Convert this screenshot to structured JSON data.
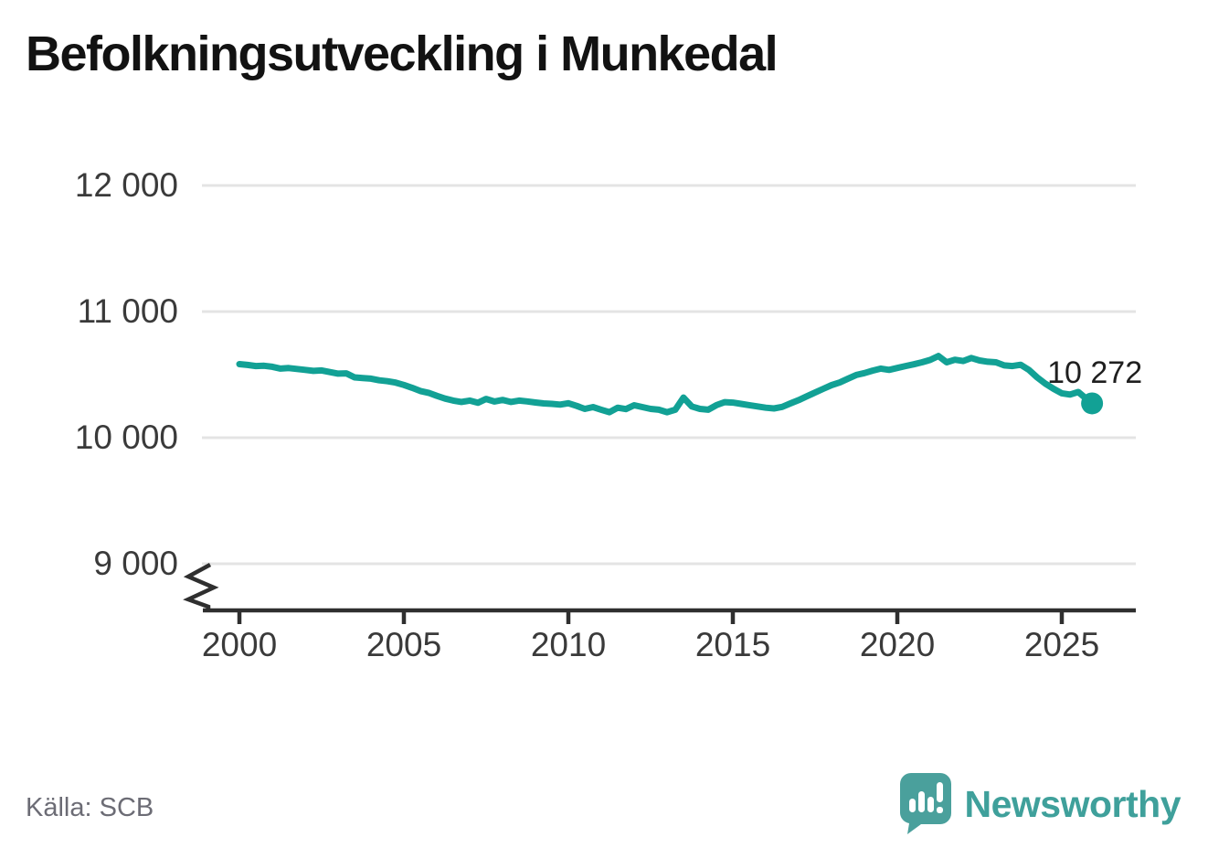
{
  "header": {
    "title": "Befolkningsutveckling i Munkedal"
  },
  "chart_data": {
    "type": "line",
    "title": "Befolkningsutveckling i Munkedal",
    "xlabel": "",
    "ylabel": "",
    "grid": "horizontal-only",
    "axis_break": true,
    "x_ticks": [
      2000,
      2005,
      2010,
      2015,
      2020,
      2025
    ],
    "x_tick_labels": [
      "2000",
      "2005",
      "2010",
      "2015",
      "2020",
      "2025"
    ],
    "y_ticks": [
      12000,
      11000,
      10000,
      9000
    ],
    "y_tick_labels": [
      "12 000",
      "11 000",
      "10 000",
      "9 000"
    ],
    "ylim_display": [
      9000,
      12000
    ],
    "xlim": [
      1999,
      2027.3
    ],
    "line_color": "#12a195",
    "grid_color": "#e4e4e4",
    "axis_color": "#2f2f2f",
    "series": [
      {
        "name": "Befolkning",
        "x": [
          2000.0,
          2000.25,
          2000.5,
          2000.75,
          2001.0,
          2001.25,
          2001.5,
          2001.75,
          2002.0,
          2002.25,
          2002.5,
          2002.75,
          2003.0,
          2003.25,
          2003.5,
          2003.75,
          2004.0,
          2004.25,
          2004.5,
          2004.75,
          2005.0,
          2005.25,
          2005.5,
          2005.75,
          2006.0,
          2006.25,
          2006.5,
          2006.75,
          2007.0,
          2007.25,
          2007.5,
          2007.75,
          2008.0,
          2008.25,
          2008.5,
          2008.75,
          2009.0,
          2009.25,
          2009.5,
          2009.75,
          2010.0,
          2010.25,
          2010.5,
          2010.75,
          2011.0,
          2011.25,
          2011.5,
          2011.75,
          2012.0,
          2012.25,
          2012.5,
          2012.75,
          2013.0,
          2013.25,
          2013.5,
          2013.75,
          2014.0,
          2014.25,
          2014.5,
          2014.75,
          2015.0,
          2015.25,
          2015.5,
          2015.75,
          2016.0,
          2016.25,
          2016.5,
          2016.75,
          2017.0,
          2017.25,
          2017.5,
          2017.75,
          2018.0,
          2018.25,
          2018.5,
          2018.75,
          2019.0,
          2019.25,
          2019.5,
          2019.75,
          2020.0,
          2020.25,
          2020.5,
          2020.75,
          2021.0,
          2021.25,
          2021.5,
          2021.75,
          2022.0,
          2022.25,
          2022.5,
          2022.75,
          2023.0,
          2023.25,
          2023.5,
          2023.75,
          2024.0,
          2024.25,
          2024.5,
          2024.75,
          2025.0,
          2025.25,
          2025.5,
          2025.75,
          2025.92
        ],
        "values": [
          10583,
          10577,
          10568,
          10570,
          10562,
          10548,
          10552,
          10545,
          10538,
          10530,
          10533,
          10520,
          10508,
          10510,
          10478,
          10473,
          10468,
          10455,
          10448,
          10437,
          10418,
          10396,
          10370,
          10356,
          10332,
          10310,
          10294,
          10283,
          10294,
          10277,
          10307,
          10287,
          10299,
          10283,
          10294,
          10288,
          10279,
          10272,
          10268,
          10262,
          10273,
          10252,
          10228,
          10243,
          10222,
          10202,
          10238,
          10227,
          10257,
          10243,
          10228,
          10222,
          10202,
          10222,
          10318,
          10248,
          10228,
          10222,
          10258,
          10282,
          10278,
          10268,
          10258,
          10248,
          10238,
          10232,
          10244,
          10272,
          10298,
          10328,
          10358,
          10388,
          10417,
          10438,
          10468,
          10497,
          10512,
          10532,
          10548,
          10538,
          10553,
          10568,
          10582,
          10598,
          10617,
          10648,
          10598,
          10618,
          10608,
          10632,
          10612,
          10602,
          10598,
          10573,
          10568,
          10578,
          10538,
          10478,
          10428,
          10388,
          10352,
          10342,
          10362,
          10308,
          10272
        ]
      }
    ],
    "end_point": {
      "x": 2025.92,
      "value": 10272,
      "label": "10 272"
    }
  },
  "footer": {
    "source": "Källa: SCB",
    "brand": "Newsworthy"
  }
}
